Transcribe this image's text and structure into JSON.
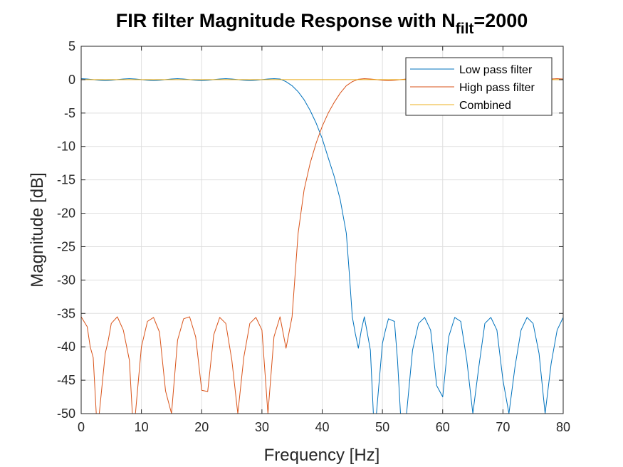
{
  "chart_data": {
    "type": "line",
    "title_main": "FIR filter Magnitude Response with N",
    "title_sub": "filt",
    "title_end": "=2000",
    "xlabel": "Frequency [Hz]",
    "ylabel": "Magnitude [dB]",
    "xlim": [
      0,
      80
    ],
    "ylim": [
      -50,
      5
    ],
    "xticks": [
      0,
      10,
      20,
      30,
      40,
      50,
      60,
      70,
      80
    ],
    "yticks": [
      5,
      0,
      -5,
      -10,
      -15,
      -20,
      -25,
      -30,
      -35,
      -40,
      -45,
      -50
    ],
    "grid": true,
    "legend_position": "top-right",
    "series": [
      {
        "name": "Low pass filter",
        "color": "#0072BD",
        "x": [
          0,
          1,
          2,
          3,
          4,
          5,
          6,
          7,
          8,
          9,
          10,
          11,
          12,
          13,
          14,
          15,
          16,
          17,
          18,
          19,
          20,
          21,
          22,
          23,
          24,
          25,
          26,
          27,
          28,
          29,
          30,
          31,
          32,
          33,
          34,
          35,
          36,
          37,
          38,
          39,
          40,
          41,
          42,
          43,
          44,
          44.5,
          45,
          45.5,
          46,
          46.5,
          47,
          47.5,
          48,
          48.5,
          49,
          50,
          50.5,
          51,
          52,
          52.5,
          53,
          54,
          55,
          56,
          57,
          58,
          59,
          60,
          61,
          62,
          63,
          64,
          65,
          66,
          67,
          68,
          69,
          70,
          71,
          72,
          73,
          74,
          75,
          76,
          77,
          78,
          79,
          80
        ],
        "y": [
          0.15,
          0.1,
          0,
          -0.1,
          -0.15,
          -0.1,
          0,
          0.1,
          0.15,
          0.1,
          0,
          -0.1,
          -0.15,
          -0.1,
          0,
          0.1,
          0.15,
          0.1,
          0,
          -0.1,
          -0.15,
          -0.1,
          0,
          0.1,
          0.15,
          0.1,
          0,
          -0.1,
          -0.15,
          -0.1,
          0,
          0.1,
          0.15,
          0.1,
          -0.3,
          -0.9,
          -1.8,
          -3.0,
          -4.6,
          -6.5,
          -8.8,
          -11.7,
          -14.5,
          -18.0,
          -23.0,
          -29.0,
          -35.5,
          -38.0,
          -40.2,
          -37.5,
          -35.5,
          -38.0,
          -40.5,
          -50,
          -50,
          -39.5,
          -37.5,
          -35.8,
          -36.2,
          -42,
          -50,
          -50,
          -40.5,
          -36.5,
          -35.6,
          -37.5,
          -45.8,
          -47.5,
          -38.5,
          -35.6,
          -36.2,
          -42,
          -50,
          -43,
          -36.5,
          -35.6,
          -37.5,
          -45,
          -50,
          -43,
          -37.5,
          -35.6,
          -36.5,
          -41,
          -50,
          -42.5,
          -37.5,
          -35.6
        ]
      },
      {
        "name": "High pass filter",
        "color": "#D95319",
        "x": [
          0,
          1,
          1.5,
          2,
          2.5,
          3,
          4,
          4.5,
          5,
          6,
          7,
          8,
          8.5,
          9,
          10,
          11,
          12,
          13,
          14,
          15,
          16,
          17,
          18,
          19,
          20,
          21,
          22,
          23,
          24,
          25,
          26,
          27,
          28,
          29,
          30,
          31,
          32,
          33,
          34,
          35,
          36,
          37,
          38,
          39,
          40,
          41,
          42,
          43,
          44,
          45,
          46,
          47,
          48,
          49,
          50,
          51,
          52,
          53,
          54,
          55,
          56,
          57,
          58,
          59,
          60,
          61,
          62,
          63,
          64,
          65,
          66,
          67,
          68,
          69,
          70,
          71,
          72,
          73,
          74,
          75,
          76,
          77,
          78,
          79,
          80
        ],
        "y": [
          -35.5,
          -37,
          -40,
          -41.6,
          -50,
          -50,
          -41,
          -39,
          -36.5,
          -35.5,
          -37.5,
          -42,
          -50,
          -50,
          -40,
          -36.2,
          -35.6,
          -37.8,
          -46.6,
          -50,
          -39,
          -35.8,
          -35.5,
          -38.5,
          -46.5,
          -46.7,
          -38.2,
          -35.6,
          -36.5,
          -42,
          -50,
          -41.5,
          -36.5,
          -35.6,
          -37.5,
          -50,
          -38.5,
          -35.5,
          -40.2,
          -35.5,
          -23.0,
          -16.5,
          -12.5,
          -9.5,
          -7.0,
          -5.0,
          -3.4,
          -2.0,
          -0.9,
          -0.3,
          0.05,
          0.15,
          0.1,
          0,
          -0.1,
          -0.15,
          -0.1,
          0,
          0.1,
          0.15,
          0.1,
          0,
          -0.1,
          -0.15,
          -0.1,
          0,
          0.1,
          0.15,
          0.1,
          0,
          -0.1,
          -0.15,
          -0.1,
          0,
          0.1,
          0.15,
          0.1,
          0,
          -0.1,
          -0.15,
          -0.1,
          0,
          0.1,
          0.15,
          0.1
        ]
      },
      {
        "name": "Combined",
        "color": "#EDB120",
        "x": [
          0,
          80
        ],
        "y": [
          0,
          0
        ]
      }
    ]
  }
}
